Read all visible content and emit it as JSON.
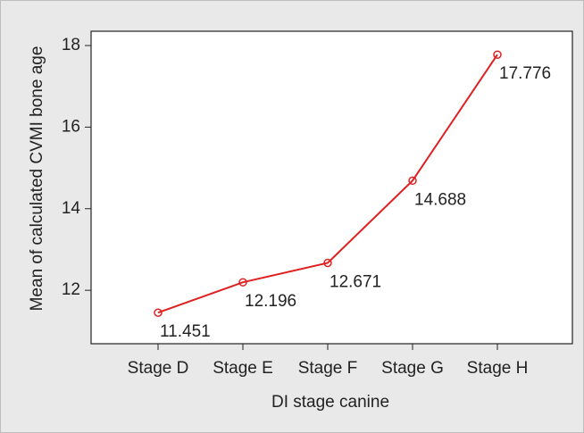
{
  "chart_data": {
    "type": "line",
    "x_label": "DI stage canine",
    "y_label": "Mean of calculated CVMI bone age",
    "categories": [
      "Stage D",
      "Stage E",
      "Stage F",
      "Stage G",
      "Stage H"
    ],
    "values": [
      11.451,
      12.196,
      12.671,
      14.688,
      17.776
    ],
    "color": "#e02020",
    "ylim": [
      10.69,
      18.35
    ],
    "yticks": [
      12,
      14,
      16,
      18
    ],
    "grid": false
  }
}
